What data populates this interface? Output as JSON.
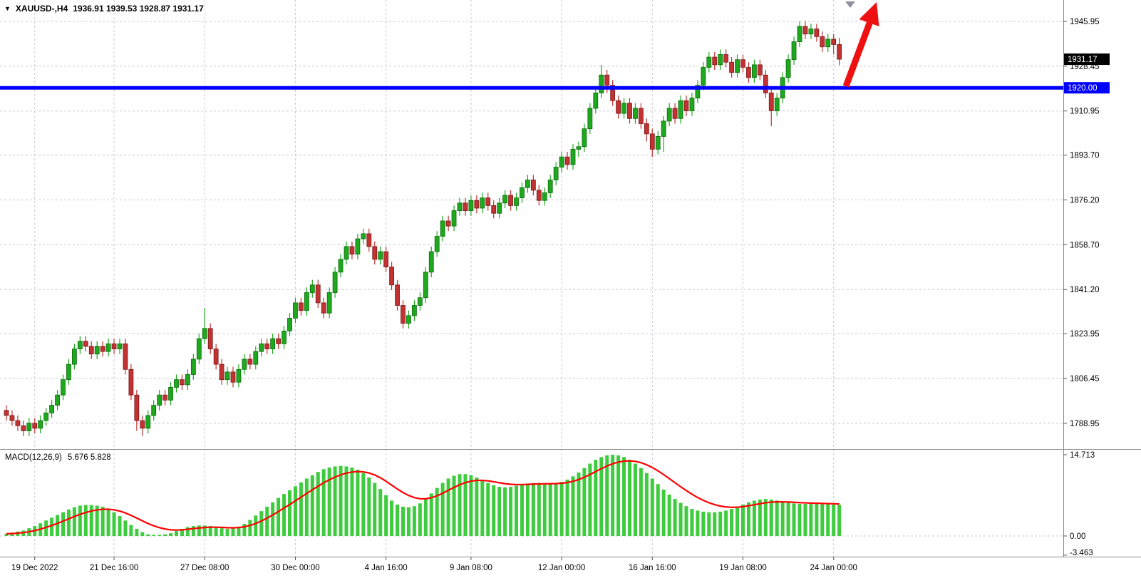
{
  "header": {
    "triangle_icon": "▼",
    "symbol_period": "XAUUSD-,H4",
    "ohlc": "1936.91 1939.53 1928.87 1931.17"
  },
  "indicator": {
    "label": "MACD(12,26,9)",
    "values": "5.676 5.828"
  },
  "colors": {
    "bull_fill": "#1ea81e",
    "bull_stroke": "#0c6b0c",
    "bear_fill": "#c23232",
    "bear_stroke": "#7c1a1a",
    "hist_fill": "#3ecc3e",
    "signal": "#ff0000",
    "hline": "#0000ff",
    "arrow": "#ee1111",
    "grid": "#c9c9d6",
    "border": "#8a8a8a",
    "badge_current_bg": "#000000",
    "badge_hline_bg": "#0000ff",
    "text": "#000000"
  },
  "chart_data": [
    {
      "type": "candlestick",
      "title": "XAUUSD- H4",
      "symbol": "XAUUSD-",
      "timeframe": "H4",
      "ohlc_current": {
        "open": 1936.91,
        "high": 1939.53,
        "low": 1928.87,
        "close": 1931.17
      },
      "ylim": [
        1778.9,
        1954.3
      ],
      "grid": true,
      "price_ticks": [
        {
          "label": "1945.95",
          "price": 1945.95
        },
        {
          "label": "1928.45",
          "price": 1928.45
        },
        {
          "label": "1910.95",
          "price": 1910.95
        },
        {
          "label": "1893.70",
          "price": 1893.7
        },
        {
          "label": "1876.20",
          "price": 1876.2
        },
        {
          "label": "1858.70",
          "price": 1858.7
        },
        {
          "label": "1841.20",
          "price": 1841.2
        },
        {
          "label": "1823.95",
          "price": 1823.95
        },
        {
          "label": "1806.45",
          "price": 1806.45
        },
        {
          "label": "1788.95",
          "price": 1788.95
        }
      ],
      "time_ticks": [
        {
          "label": "19 Dec 2022",
          "i": 5
        },
        {
          "label": "21 Dec 16:00",
          "i": 19
        },
        {
          "label": "27 Dec 08:00",
          "i": 35
        },
        {
          "label": "30 Dec 00:00",
          "i": 51
        },
        {
          "label": "4 Jan 16:00",
          "i": 67
        },
        {
          "label": "9 Jan 08:00",
          "i": 82
        },
        {
          "label": "12 Jan 00:00",
          "i": 98
        },
        {
          "label": "16 Jan 16:00",
          "i": 114
        },
        {
          "label": "19 Jan 08:00",
          "i": 130
        },
        {
          "label": "24 Jan 00:00",
          "i": 146
        }
      ],
      "hline": {
        "price": 1920.0,
        "label": "1920.00"
      },
      "current_price": {
        "value": 1931.17,
        "label": "1931.17"
      },
      "annotations": [
        {
          "type": "arrow-up",
          "color": "#ee1111"
        }
      ],
      "candles": [
        [
          1794,
          1796,
          1790,
          1792
        ],
        [
          1792,
          1794,
          1788,
          1790
        ],
        [
          1790,
          1792,
          1786,
          1788
        ],
        [
          1788,
          1790,
          1784,
          1786
        ],
        [
          1786,
          1791,
          1784,
          1789
        ],
        [
          1789,
          1791,
          1785,
          1787
        ],
        [
          1787,
          1792,
          1785,
          1790
        ],
        [
          1790,
          1795,
          1788,
          1793
        ],
        [
          1793,
          1798,
          1791,
          1796
        ],
        [
          1796,
          1802,
          1794,
          1800
        ],
        [
          1800,
          1808,
          1798,
          1806
        ],
        [
          1806,
          1814,
          1804,
          1812
        ],
        [
          1812,
          1820,
          1810,
          1818
        ],
        [
          1818,
          1823,
          1816,
          1821
        ],
        [
          1821,
          1823,
          1817,
          1819
        ],
        [
          1819,
          1821,
          1814,
          1816
        ],
        [
          1816,
          1821,
          1814,
          1819
        ],
        [
          1819,
          1821,
          1815,
          1817
        ],
        [
          1817,
          1822,
          1815,
          1820
        ],
        [
          1820,
          1822,
          1816,
          1818
        ],
        [
          1818,
          1822,
          1816,
          1820
        ],
        [
          1820,
          1822,
          1808,
          1810
        ],
        [
          1810,
          1812,
          1798,
          1800
        ],
        [
          1800,
          1802,
          1786,
          1790
        ],
        [
          1790,
          1792,
          1784,
          1787
        ],
        [
          1787,
          1794,
          1785,
          1792
        ],
        [
          1792,
          1798,
          1790,
          1796
        ],
        [
          1796,
          1802,
          1794,
          1800
        ],
        [
          1800,
          1802,
          1796,
          1798
        ],
        [
          1798,
          1805,
          1796,
          1803
        ],
        [
          1803,
          1808,
          1801,
          1806
        ],
        [
          1806,
          1808,
          1802,
          1804
        ],
        [
          1804,
          1810,
          1802,
          1808
        ],
        [
          1808,
          1816,
          1806,
          1814
        ],
        [
          1814,
          1824,
          1812,
          1822
        ],
        [
          1822,
          1834,
          1820,
          1826
        ],
        [
          1826,
          1828,
          1816,
          1818
        ],
        [
          1818,
          1820,
          1810,
          1812
        ],
        [
          1812,
          1814,
          1804,
          1806
        ],
        [
          1806,
          1811,
          1804,
          1809
        ],
        [
          1809,
          1811,
          1803,
          1805
        ],
        [
          1805,
          1812,
          1803,
          1810
        ],
        [
          1810,
          1816,
          1808,
          1814
        ],
        [
          1814,
          1816,
          1810,
          1812
        ],
        [
          1812,
          1819,
          1810,
          1817
        ],
        [
          1817,
          1822,
          1815,
          1820
        ],
        [
          1820,
          1822,
          1816,
          1818
        ],
        [
          1818,
          1824,
          1816,
          1822
        ],
        [
          1822,
          1824,
          1818,
          1820
        ],
        [
          1820,
          1827,
          1818,
          1825
        ],
        [
          1825,
          1832,
          1823,
          1830
        ],
        [
          1830,
          1838,
          1828,
          1836
        ],
        [
          1836,
          1838,
          1831,
          1833
        ],
        [
          1833,
          1842,
          1831,
          1840
        ],
        [
          1840,
          1845,
          1838,
          1843
        ],
        [
          1843,
          1845,
          1834,
          1836
        ],
        [
          1836,
          1838,
          1830,
          1832
        ],
        [
          1832,
          1842,
          1830,
          1840
        ],
        [
          1840,
          1850,
          1838,
          1848
        ],
        [
          1848,
          1855,
          1846,
          1853
        ],
        [
          1853,
          1860,
          1851,
          1858
        ],
        [
          1858,
          1860,
          1853,
          1855
        ],
        [
          1855,
          1863,
          1853,
          1861
        ],
        [
          1861,
          1865,
          1859,
          1863
        ],
        [
          1863,
          1865,
          1856,
          1858
        ],
        [
          1858,
          1860,
          1851,
          1853
        ],
        [
          1853,
          1858,
          1851,
          1856
        ],
        [
          1856,
          1858,
          1848,
          1850
        ],
        [
          1850,
          1852,
          1841,
          1843
        ],
        [
          1843,
          1845,
          1833,
          1835
        ],
        [
          1835,
          1837,
          1826,
          1828
        ],
        [
          1828,
          1833,
          1826,
          1831
        ],
        [
          1831,
          1837,
          1829,
          1835
        ],
        [
          1835,
          1840,
          1833,
          1838
        ],
        [
          1838,
          1850,
          1836,
          1848
        ],
        [
          1848,
          1858,
          1846,
          1856
        ],
        [
          1856,
          1864,
          1854,
          1862
        ],
        [
          1862,
          1870,
          1860,
          1868
        ],
        [
          1868,
          1870,
          1864,
          1866
        ],
        [
          1866,
          1874,
          1864,
          1872
        ],
        [
          1872,
          1877,
          1870,
          1875
        ],
        [
          1875,
          1877,
          1870,
          1872
        ],
        [
          1872,
          1878,
          1870,
          1876
        ],
        [
          1876,
          1878,
          1871,
          1873
        ],
        [
          1873,
          1879,
          1871,
          1877
        ],
        [
          1877,
          1879,
          1872,
          1874
        ],
        [
          1874,
          1876,
          1869,
          1871
        ],
        [
          1871,
          1877,
          1869,
          1875
        ],
        [
          1875,
          1880,
          1873,
          1878
        ],
        [
          1878,
          1880,
          1872,
          1874
        ],
        [
          1874,
          1879,
          1872,
          1877
        ],
        [
          1877,
          1883,
          1875,
          1881
        ],
        [
          1881,
          1886,
          1879,
          1884
        ],
        [
          1884,
          1886,
          1878,
          1880
        ],
        [
          1880,
          1882,
          1874,
          1876
        ],
        [
          1876,
          1881,
          1874,
          1879
        ],
        [
          1879,
          1886,
          1877,
          1884
        ],
        [
          1884,
          1891,
          1882,
          1889
        ],
        [
          1889,
          1895,
          1887,
          1893
        ],
        [
          1893,
          1895,
          1888,
          1890
        ],
        [
          1890,
          1898,
          1888,
          1896
        ],
        [
          1896,
          1899,
          1893,
          1897
        ],
        [
          1897,
          1906,
          1895,
          1904
        ],
        [
          1904,
          1914,
          1902,
          1912
        ],
        [
          1912,
          1920,
          1910,
          1918
        ],
        [
          1918,
          1929,
          1916,
          1925
        ],
        [
          1925,
          1927,
          1918,
          1921
        ],
        [
          1921,
          1923,
          1913,
          1915
        ],
        [
          1915,
          1917,
          1908,
          1910
        ],
        [
          1910,
          1916,
          1908,
          1914
        ],
        [
          1914,
          1916,
          1906,
          1908
        ],
        [
          1908,
          1914,
          1906,
          1912
        ],
        [
          1912,
          1914,
          1904,
          1906
        ],
        [
          1906,
          1908,
          1899,
          1902
        ],
        [
          1902,
          1904,
          1893,
          1896
        ],
        [
          1896,
          1903,
          1894,
          1901
        ],
        [
          1901,
          1909,
          1895,
          1907
        ],
        [
          1907,
          1914,
          1905,
          1912
        ],
        [
          1912,
          1914,
          1906,
          1908
        ],
        [
          1908,
          1917,
          1906,
          1915
        ],
        [
          1915,
          1917,
          1909,
          1911
        ],
        [
          1911,
          1918,
          1909,
          1916
        ],
        [
          1916,
          1923,
          1914,
          1921
        ],
        [
          1921,
          1930,
          1919,
          1928
        ],
        [
          1928,
          1934,
          1926,
          1932
        ],
        [
          1932,
          1934,
          1927,
          1929
        ],
        [
          1929,
          1935,
          1927,
          1933
        ],
        [
          1933,
          1935,
          1928,
          1930
        ],
        [
          1930,
          1932,
          1924,
          1926
        ],
        [
          1926,
          1933,
          1924,
          1931
        ],
        [
          1931,
          1933,
          1926,
          1928
        ],
        [
          1928,
          1930,
          1922,
          1924
        ],
        [
          1924,
          1931,
          1922,
          1929
        ],
        [
          1929,
          1931,
          1923,
          1925
        ],
        [
          1925,
          1927,
          1916,
          1918
        ],
        [
          1918,
          1920,
          1905,
          1911
        ],
        [
          1911,
          1918,
          1909,
          1916
        ],
        [
          1916,
          1926,
          1914,
          1924
        ],
        [
          1924,
          1933,
          1922,
          1931
        ],
        [
          1931,
          1940,
          1929,
          1938
        ],
        [
          1938,
          1946,
          1936,
          1944
        ],
        [
          1944,
          1946,
          1939,
          1941
        ],
        [
          1941,
          1945,
          1939,
          1943
        ],
        [
          1943,
          1945,
          1938,
          1940
        ],
        [
          1940,
          1942,
          1934,
          1936
        ],
        [
          1936,
          1941,
          1934,
          1939
        ],
        [
          1939,
          1941,
          1933,
          1936.91
        ],
        [
          1936.91,
          1939.53,
          1928.87,
          1931.17
        ]
      ]
    },
    {
      "type": "bar",
      "name": "MACD(12,26,9)",
      "macd_last": 5.676,
      "signal_last": 5.828,
      "ylim": [
        -3.742,
        15.62
      ],
      "y_ticks": [
        {
          "label": "14.713",
          "v": 14.713
        },
        {
          "label": "0.00",
          "v": 0
        },
        {
          "label": "-3.463",
          "v": -3.463
        }
      ],
      "signal": {
        "type": "ema",
        "period": 9
      },
      "values": [
        0.4,
        0.6,
        0.8,
        1.0,
        1.4,
        1.8,
        2.3,
        2.8,
        3.3,
        3.8,
        4.3,
        4.8,
        5.2,
        5.5,
        5.6,
        5.6,
        5.5,
        5.3,
        4.9,
        4.3,
        3.6,
        2.8,
        2.0,
        1.3,
        0.7,
        0.3,
        0.2,
        0.2,
        0.3,
        0.5,
        0.9,
        1.3,
        1.6,
        1.8,
        1.9,
        1.9,
        1.8,
        1.6,
        1.4,
        1.3,
        1.4,
        1.7,
        2.2,
        2.9,
        3.7,
        4.5,
        5.3,
        6.1,
        6.9,
        7.6,
        8.3,
        9.0,
        9.7,
        10.4,
        11.0,
        11.6,
        12.1,
        12.4,
        12.6,
        12.7,
        12.6,
        12.4,
        12.0,
        11.4,
        10.6,
        9.6,
        8.5,
        7.4,
        6.4,
        5.7,
        5.3,
        5.2,
        5.4,
        5.9,
        6.7,
        7.7,
        8.7,
        9.6,
        10.4,
        10.9,
        11.2,
        11.2,
        11.0,
        10.6,
        10.1,
        9.6,
        9.2,
        8.9,
        8.8,
        8.9,
        9.1,
        9.3,
        9.5,
        9.6,
        9.6,
        9.5,
        9.5,
        9.6,
        9.8,
        10.2,
        10.8,
        11.5,
        12.3,
        13.1,
        13.8,
        14.3,
        14.6,
        14.713,
        14.6,
        14.3,
        13.8,
        13.1,
        12.3,
        11.4,
        10.4,
        9.4,
        8.4,
        7.5,
        6.7,
        6.0,
        5.4,
        4.9,
        4.6,
        4.4,
        4.3,
        4.3,
        4.4,
        4.6,
        4.9,
        5.3,
        5.7,
        6.1,
        6.4,
        6.6,
        6.7,
        6.6,
        6.4,
        6.2,
        6.0,
        5.9,
        5.8,
        5.8,
        5.8,
        5.8,
        5.8,
        5.75,
        5.7,
        5.676
      ]
    }
  ]
}
